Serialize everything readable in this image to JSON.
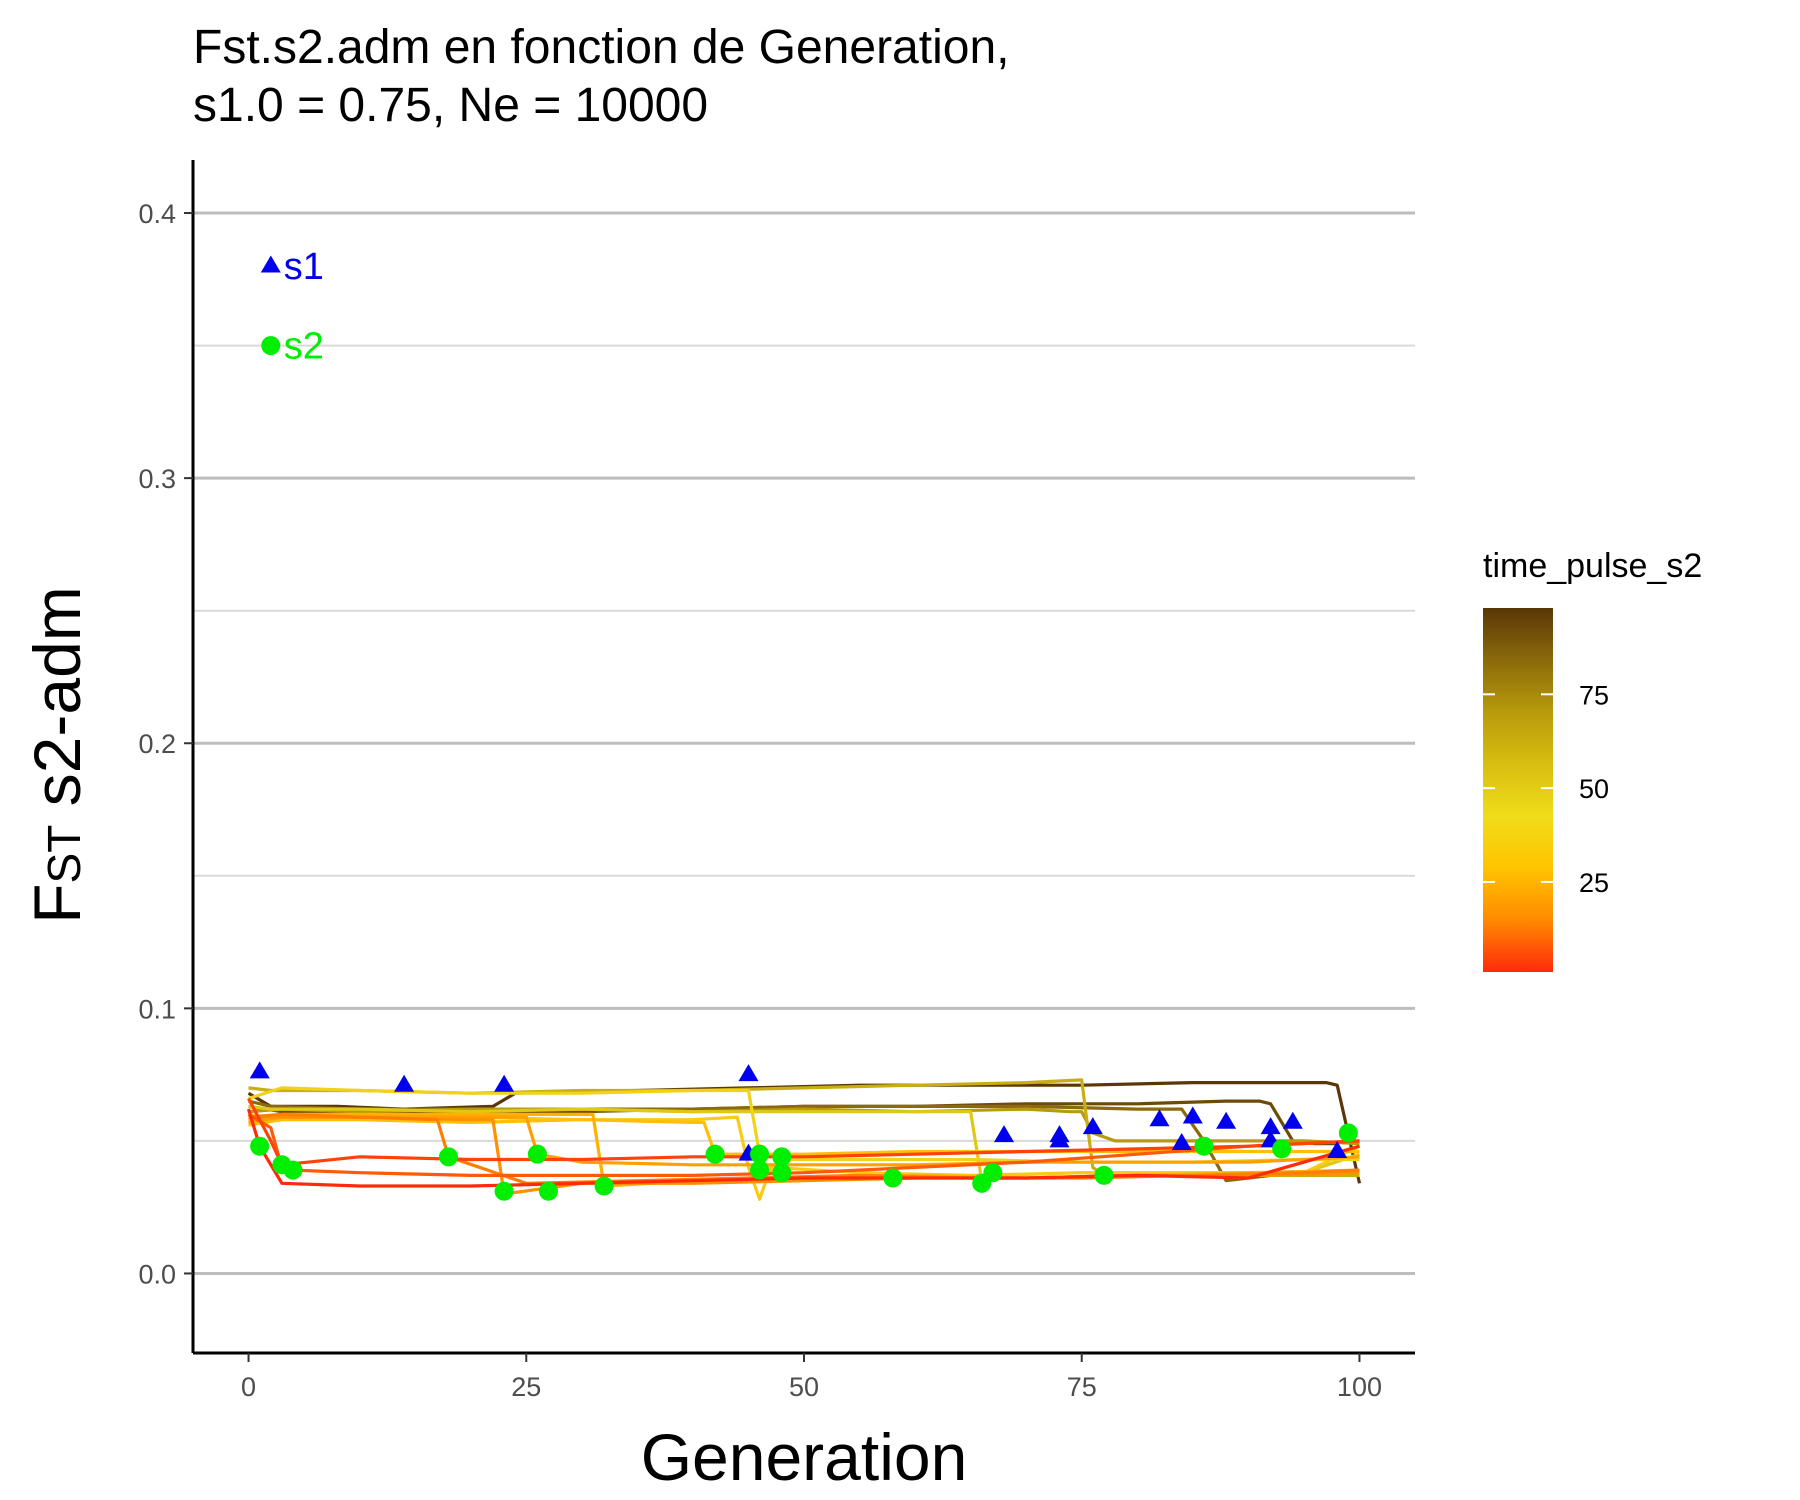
{
  "chart_data": {
    "type": "line",
    "title": "Fst.s2.adm en fonction de Generation,",
    "subtitle": "s1.0 = 0.75, Ne = 10000",
    "xlabel": "Generation",
    "ylabel_main": "F",
    "ylabel_sub": "ST",
    "ylabel_rest": " s2-adm",
    "xlim": [
      -5,
      105
    ],
    "ylim": [
      -0.03,
      0.42
    ],
    "x_ticks": [
      0,
      25,
      50,
      75,
      100
    ],
    "x_tick_labels": [
      "0",
      "25",
      "50",
      "75",
      "100"
    ],
    "y_ticks": [
      0.0,
      0.1,
      0.2,
      0.3,
      0.4
    ],
    "y_tick_labels": [
      "0.0",
      "0.1",
      "0.2",
      "0.3",
      "0.4"
    ],
    "y_minor": [
      0.05,
      0.15,
      0.25,
      0.35
    ],
    "grid": "horizontal",
    "legend": {
      "title": "time_pulse_s2",
      "placement": "right",
      "labels": [
        "75",
        "50",
        "25"
      ],
      "label_values": [
        75,
        50,
        25
      ],
      "range": [
        1,
        98
      ],
      "gradient_colors": [
        "#ff2a0a",
        "#ff8a00",
        "#ffc400",
        "#f0dc1a",
        "#d8be10",
        "#b89a0c",
        "#8a6a0a",
        "#5a3608"
      ]
    },
    "annotations": [
      {
        "label": "s1",
        "marker": "triangle",
        "color": "#0000ee",
        "x": 2,
        "y": 0.38
      },
      {
        "label": "s2",
        "marker": "circle",
        "color": "#00ee00",
        "x": 2,
        "y": 0.35
      }
    ],
    "series": [
      {
        "time_pulse": 98,
        "color": "#5a3608",
        "x": [
          0,
          2,
          8,
          14,
          22,
          24,
          35,
          45,
          55,
          65,
          75,
          85,
          93,
          97,
          98,
          100
        ],
        "y": [
          0.068,
          0.063,
          0.063,
          0.062,
          0.063,
          0.068,
          0.069,
          0.07,
          0.071,
          0.071,
          0.071,
          0.072,
          0.072,
          0.072,
          0.071,
          0.034
        ]
      },
      {
        "time_pulse": 92,
        "color": "#6e4a08",
        "x": [
          0,
          3,
          10,
          20,
          30,
          40,
          50,
          60,
          70,
          80,
          88,
          91,
          92,
          94,
          96,
          98
        ],
        "y": [
          0.063,
          0.061,
          0.06,
          0.061,
          0.061,
          0.062,
          0.063,
          0.063,
          0.064,
          0.064,
          0.065,
          0.065,
          0.064,
          0.05,
          0.049,
          0.049
        ]
      },
      {
        "time_pulse": 85,
        "color": "#8a6a0a",
        "x": [
          0,
          2,
          10,
          20,
          30,
          40,
          50,
          60,
          70,
          80,
          84,
          86,
          88,
          92
        ],
        "y": [
          0.065,
          0.063,
          0.062,
          0.062,
          0.062,
          0.062,
          0.063,
          0.063,
          0.063,
          0.062,
          0.062,
          0.05,
          0.035,
          0.037
        ]
      },
      {
        "time_pulse": 76,
        "color": "#b89a0c",
        "x": [
          0,
          3,
          10,
          20,
          30,
          40,
          50,
          60,
          70,
          74,
          75,
          76,
          78,
          85,
          95,
          100
        ],
        "y": [
          0.061,
          0.062,
          0.061,
          0.062,
          0.062,
          0.061,
          0.062,
          0.061,
          0.062,
          0.061,
          0.061,
          0.053,
          0.05,
          0.05,
          0.05,
          0.049
        ]
      },
      {
        "time_pulse": 73,
        "color": "#c8ae10",
        "x": [
          0,
          2,
          10,
          20,
          30,
          40,
          50,
          60,
          70,
          75,
          76,
          77,
          85,
          95,
          100
        ],
        "y": [
          0.07,
          0.069,
          0.069,
          0.068,
          0.069,
          0.069,
          0.07,
          0.071,
          0.072,
          0.073,
          0.04,
          0.037,
          0.037,
          0.037,
          0.037
        ]
      },
      {
        "time_pulse": 67,
        "color": "#e0c818",
        "x": [
          0,
          2,
          10,
          20,
          30,
          40,
          50,
          60,
          65,
          66,
          67,
          75,
          85,
          95,
          100
        ],
        "y": [
          0.063,
          0.062,
          0.062,
          0.061,
          0.062,
          0.061,
          0.061,
          0.061,
          0.061,
          0.035,
          0.037,
          0.038,
          0.038,
          0.038,
          0.045
        ]
      },
      {
        "time_pulse": 48,
        "color": "#f0d21a",
        "x": [
          0,
          3,
          10,
          20,
          30,
          40,
          45,
          46,
          47,
          48,
          55,
          65,
          75,
          85,
          95,
          100
        ],
        "y": [
          0.066,
          0.07,
          0.069,
          0.068,
          0.068,
          0.069,
          0.069,
          0.045,
          0.038,
          0.043,
          0.043,
          0.043,
          0.042,
          0.042,
          0.043,
          0.043
        ]
      },
      {
        "time_pulse": 46,
        "color": "#fbca14",
        "x": [
          0,
          3,
          10,
          20,
          30,
          40,
          44,
          45,
          46,
          47,
          55,
          65,
          75,
          85,
          95,
          100
        ],
        "y": [
          0.06,
          0.058,
          0.059,
          0.059,
          0.058,
          0.058,
          0.059,
          0.04,
          0.028,
          0.04,
          0.038,
          0.037,
          0.038,
          0.038,
          0.038,
          0.048
        ]
      },
      {
        "time_pulse": 42,
        "color": "#ffbe0a",
        "x": [
          0,
          3,
          10,
          20,
          30,
          40,
          41,
          42,
          50,
          60,
          70,
          80,
          90,
          100
        ],
        "y": [
          0.056,
          0.058,
          0.058,
          0.057,
          0.058,
          0.057,
          0.057,
          0.045,
          0.045,
          0.046,
          0.046,
          0.046,
          0.046,
          0.046
        ]
      },
      {
        "time_pulse": 32,
        "color": "#ffb000",
        "x": [
          0,
          3,
          10,
          20,
          28,
          30,
          31,
          32,
          40,
          50,
          60,
          70,
          80,
          90,
          100
        ],
        "y": [
          0.058,
          0.06,
          0.06,
          0.06,
          0.06,
          0.06,
          0.06,
          0.033,
          0.035,
          0.036,
          0.037,
          0.036,
          0.037,
          0.038,
          0.039
        ]
      },
      {
        "time_pulse": 26,
        "color": "#ffa000",
        "x": [
          0,
          3,
          10,
          20,
          25,
          26,
          30,
          40,
          50,
          60,
          70,
          80,
          90,
          100
        ],
        "y": [
          0.057,
          0.059,
          0.059,
          0.059,
          0.059,
          0.045,
          0.042,
          0.041,
          0.041,
          0.041,
          0.042,
          0.042,
          0.042,
          0.044
        ]
      },
      {
        "time_pulse": 23,
        "color": "#ff9000",
        "x": [
          0,
          3,
          10,
          20,
          22,
          23,
          30,
          40,
          50,
          60,
          70,
          80,
          90,
          100
        ],
        "y": [
          0.059,
          0.059,
          0.059,
          0.058,
          0.058,
          0.03,
          0.034,
          0.034,
          0.035,
          0.036,
          0.036,
          0.037,
          0.037,
          0.038
        ]
      },
      {
        "time_pulse": 18,
        "color": "#ff7e00",
        "x": [
          0,
          3,
          10,
          17,
          18,
          25,
          35,
          45,
          55,
          65,
          75,
          85,
          95,
          100
        ],
        "y": [
          0.059,
          0.06,
          0.059,
          0.058,
          0.044,
          0.034,
          0.035,
          0.036,
          0.037,
          0.036,
          0.036,
          0.037,
          0.038,
          0.039
        ]
      },
      {
        "time_pulse": 4,
        "color": "#ff5a08",
        "x": [
          0,
          2,
          3,
          4,
          10,
          20,
          30,
          40,
          50,
          60,
          70,
          80,
          90,
          100
        ],
        "y": [
          0.06,
          0.055,
          0.04,
          0.039,
          0.038,
          0.037,
          0.037,
          0.037,
          0.038,
          0.04,
          0.042,
          0.045,
          0.048,
          0.05
        ]
      },
      {
        "time_pulse": 3,
        "color": "#ff420a",
        "x": [
          0,
          2,
          3,
          10,
          20,
          30,
          40,
          50,
          60,
          70,
          80,
          90,
          100
        ],
        "y": [
          0.066,
          0.05,
          0.041,
          0.044,
          0.043,
          0.043,
          0.044,
          0.044,
          0.045,
          0.046,
          0.047,
          0.048,
          0.05
        ]
      },
      {
        "time_pulse": 1,
        "color": "#ff2a0a",
        "x": [
          0,
          1,
          3,
          10,
          20,
          30,
          40,
          50,
          60,
          70,
          80,
          90,
          100
        ],
        "y": [
          0.062,
          0.048,
          0.034,
          0.033,
          0.033,
          0.034,
          0.035,
          0.036,
          0.036,
          0.036,
          0.037,
          0.036,
          0.048
        ]
      }
    ],
    "s1_points": [
      {
        "x": 1,
        "y": 0.076
      },
      {
        "x": 14,
        "y": 0.071
      },
      {
        "x": 23,
        "y": 0.071
      },
      {
        "x": 45,
        "y": 0.075
      },
      {
        "x": 45,
        "y": 0.045
      },
      {
        "x": 68,
        "y": 0.052
      },
      {
        "x": 73,
        "y": 0.05
      },
      {
        "x": 73,
        "y": 0.052
      },
      {
        "x": 76,
        "y": 0.055
      },
      {
        "x": 82,
        "y": 0.058
      },
      {
        "x": 84,
        "y": 0.049
      },
      {
        "x": 85,
        "y": 0.059
      },
      {
        "x": 88,
        "y": 0.057
      },
      {
        "x": 92,
        "y": 0.055
      },
      {
        "x": 92,
        "y": 0.05
      },
      {
        "x": 94,
        "y": 0.057
      },
      {
        "x": 98,
        "y": 0.046
      }
    ],
    "s2_points": [
      {
        "x": 1,
        "y": 0.048
      },
      {
        "x": 3,
        "y": 0.041
      },
      {
        "x": 4,
        "y": 0.039
      },
      {
        "x": 18,
        "y": 0.044
      },
      {
        "x": 23,
        "y": 0.031
      },
      {
        "x": 26,
        "y": 0.045
      },
      {
        "x": 27,
        "y": 0.031
      },
      {
        "x": 32,
        "y": 0.033
      },
      {
        "x": 42,
        "y": 0.045
      },
      {
        "x": 46,
        "y": 0.045
      },
      {
        "x": 46,
        "y": 0.039
      },
      {
        "x": 48,
        "y": 0.044
      },
      {
        "x": 48,
        "y": 0.038
      },
      {
        "x": 58,
        "y": 0.036
      },
      {
        "x": 66,
        "y": 0.034
      },
      {
        "x": 67,
        "y": 0.038
      },
      {
        "x": 77,
        "y": 0.037
      },
      {
        "x": 86,
        "y": 0.048
      },
      {
        "x": 93,
        "y": 0.047
      },
      {
        "x": 99,
        "y": 0.053
      }
    ]
  }
}
